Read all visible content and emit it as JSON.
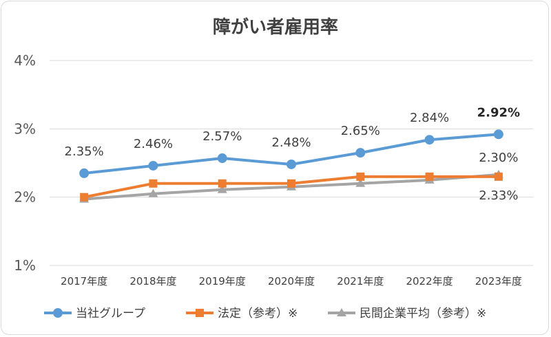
{
  "chart_data": {
    "type": "line",
    "title": "障がい者雇用率",
    "categories": [
      "2017年度",
      "2018年度",
      "2019年度",
      "2020年度",
      "2021年度",
      "2022年度",
      "2023年度"
    ],
    "y_tick_labels": [
      "1%",
      "2%",
      "3%",
      "4%"
    ],
    "y_ticks": [
      1,
      2,
      3,
      4
    ],
    "ylim": [
      1,
      4
    ],
    "grid": "horizontal",
    "legend_position": "bottom",
    "series": [
      {
        "name": "当社グループ",
        "color": "#5b9bd5",
        "marker": "circle",
        "values": [
          2.35,
          2.46,
          2.57,
          2.48,
          2.65,
          2.84,
          2.92
        ],
        "labels": [
          "2.35%",
          "2.46%",
          "2.57%",
          "2.48%",
          "2.65%",
          "2.84%",
          "2.92%"
        ]
      },
      {
        "name": "法定（参考）※",
        "color": "#ed7d31",
        "marker": "square",
        "values": [
          2.0,
          2.2,
          2.2,
          2.2,
          2.3,
          2.3,
          2.3
        ],
        "labels": [
          "",
          "",
          "",
          "",
          "",
          "",
          "2.30%"
        ]
      },
      {
        "name": "民間企業平均（参考）※",
        "color": "#a5a5a5",
        "marker": "triangle",
        "values": [
          1.97,
          2.05,
          2.11,
          2.15,
          2.2,
          2.25,
          2.33
        ],
        "labels": [
          "",
          "",
          "",
          "",
          "",
          "",
          "2.33%"
        ]
      }
    ]
  }
}
